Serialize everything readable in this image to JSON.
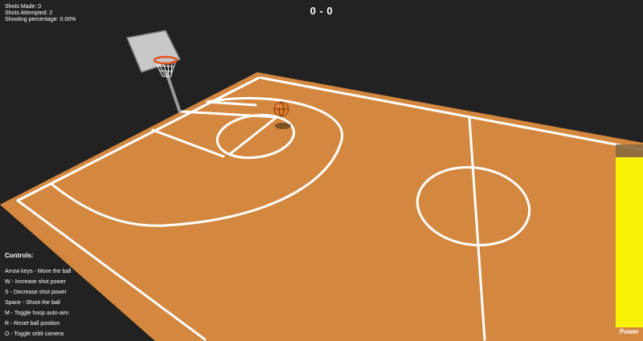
{
  "hud": {
    "shots_made_label": "Shots Made: 0",
    "shots_attempted_label": "Shots Attempted: 2",
    "shooting_percentage_label": "Shooting percentage: 0.00%",
    "score": "0 - 0"
  },
  "controls": {
    "title": "Controls:",
    "items": [
      "Arrow keys - Move the ball",
      "W - Increase shot power",
      "S - Decrease shot power",
      "Space - Shoot the ball",
      "M - Toggle hoop auto-aim",
      "R - Reset ball position",
      "O - Toggle orbit camera"
    ]
  },
  "power": {
    "label": "Power",
    "level": 0.93
  },
  "colors": {
    "background": "#222222",
    "court": "#d4873f",
    "lines": "#ffffff",
    "power_fill": "#ffff00",
    "ball": "#e07a2a"
  }
}
